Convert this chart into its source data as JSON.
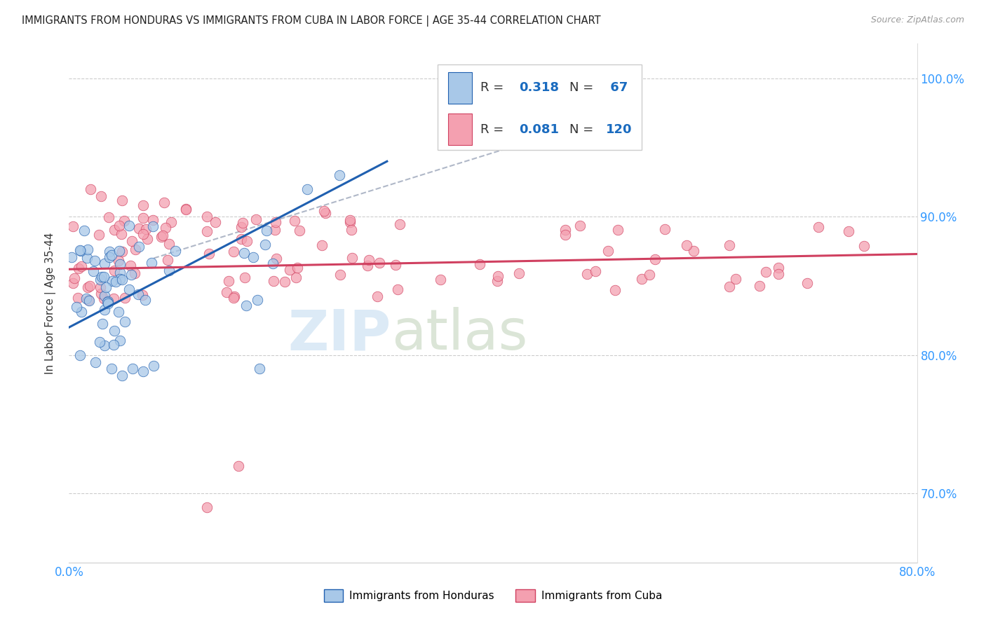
{
  "title": "IMMIGRANTS FROM HONDURAS VS IMMIGRANTS FROM CUBA IN LABOR FORCE | AGE 35-44 CORRELATION CHART",
  "source": "Source: ZipAtlas.com",
  "ylabel": "In Labor Force | Age 35-44",
  "xmin": 0.0,
  "xmax": 0.8,
  "ymin": 0.65,
  "ymax": 1.025,
  "xticks": [
    0.0,
    0.1,
    0.2,
    0.3,
    0.4,
    0.5,
    0.6,
    0.7,
    0.8
  ],
  "xticklabels": [
    "0.0%",
    "",
    "",
    "",
    "",
    "",
    "",
    "",
    "80.0%"
  ],
  "yticks": [
    0.7,
    0.8,
    0.9,
    1.0
  ],
  "yticklabels": [
    "70.0%",
    "80.0%",
    "90.0%",
    "100.0%"
  ],
  "color_honduras": "#a8c8e8",
  "color_cuba": "#f4a0b0",
  "color_line_honduras": "#2060b0",
  "color_line_cuba": "#d04060",
  "color_r_value": "#1a6bbf",
  "watermark_zip": "ZIP",
  "watermark_atlas": "atlas",
  "watermark_color_zip": "#c8dff0",
  "watermark_color_atlas": "#c8d8c0"
}
